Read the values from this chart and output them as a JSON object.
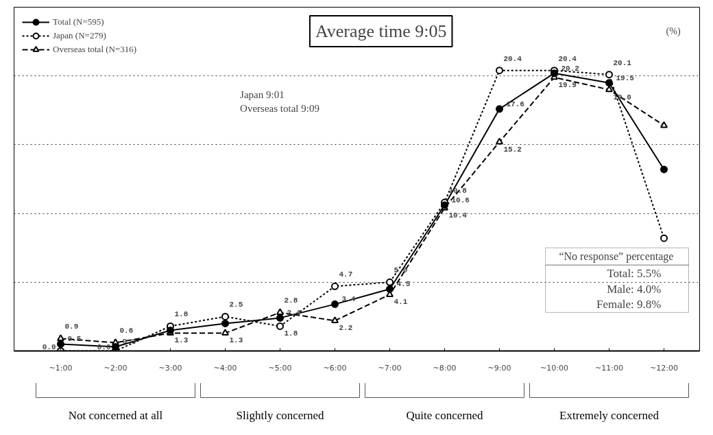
{
  "chart_data": {
    "type": "line",
    "title": "Average time 9:05",
    "ylabel": "(%)",
    "categories": [
      "~1:00",
      "~2:00",
      "~3:00",
      "~4:00",
      "~5:00",
      "~6:00",
      "~7:00",
      "~8:00",
      "~9:00",
      "~10:00",
      "~11:00",
      "~12:00"
    ],
    "series": [
      {
        "name": "Total (N=595)",
        "color": "#000000",
        "marker": "circle",
        "line_style": "solid",
        "values": [
          0.5,
          0.3,
          1.5,
          2.0,
          2.4,
          3.4,
          4.5,
          10.6,
          17.6,
          20.2,
          19.5,
          13.2
        ],
        "value_labels": [
          "0.5",
          "0.3",
          null,
          null,
          "2.4",
          "3.4",
          "4.5",
          "10.6",
          "17.6",
          "20.2",
          "19.5",
          null
        ]
      },
      {
        "name": "Japan (N=279)",
        "color": "#000000",
        "marker": "circle",
        "line_style": "dotted",
        "values": [
          0.0,
          0.0,
          1.8,
          2.5,
          1.8,
          4.7,
          5.0,
          10.8,
          20.4,
          20.4,
          20.1,
          8.2
        ],
        "value_labels": [
          "0.0",
          "0.0",
          "1.8",
          "2.5",
          "1.8",
          "4.7",
          "5.0",
          "10.8",
          "20.4",
          "20.4",
          "20.1",
          null
        ]
      },
      {
        "name": "Overseas total (N=316)",
        "color": "#000000",
        "marker": "triangle",
        "line_style": "dashed",
        "values": [
          0.9,
          0.6,
          1.3,
          1.3,
          2.8,
          2.2,
          4.1,
          10.4,
          15.2,
          19.9,
          19.0,
          16.4
        ],
        "value_labels": [
          "0.9",
          "0.6",
          "1.3",
          "1.3",
          "2.8",
          "2.2",
          "4.1",
          "10.4",
          "15.2",
          "19.9",
          "19.0",
          null
        ]
      }
    ],
    "ylim": [
      0,
      25
    ],
    "yticks": [
      {
        "value": 5,
        "label": null
      },
      {
        "value": 10,
        "label": null
      },
      {
        "value": 15,
        "label": null
      },
      {
        "value": 20,
        "label": null
      }
    ],
    "tick_labels": "x",
    "grid": "y",
    "legend": "top left",
    "annotations": [
      "Japan 9:01",
      "Overseas total 9:09",
      "“No response” percentage",
      "Total: 5.5%",
      "Male: 4.0%",
      "Female: 9.8%",
      "Not concerned at all",
      "Slightly concerned",
      "Quite concerned",
      "Extremely concerned"
    ]
  }
}
